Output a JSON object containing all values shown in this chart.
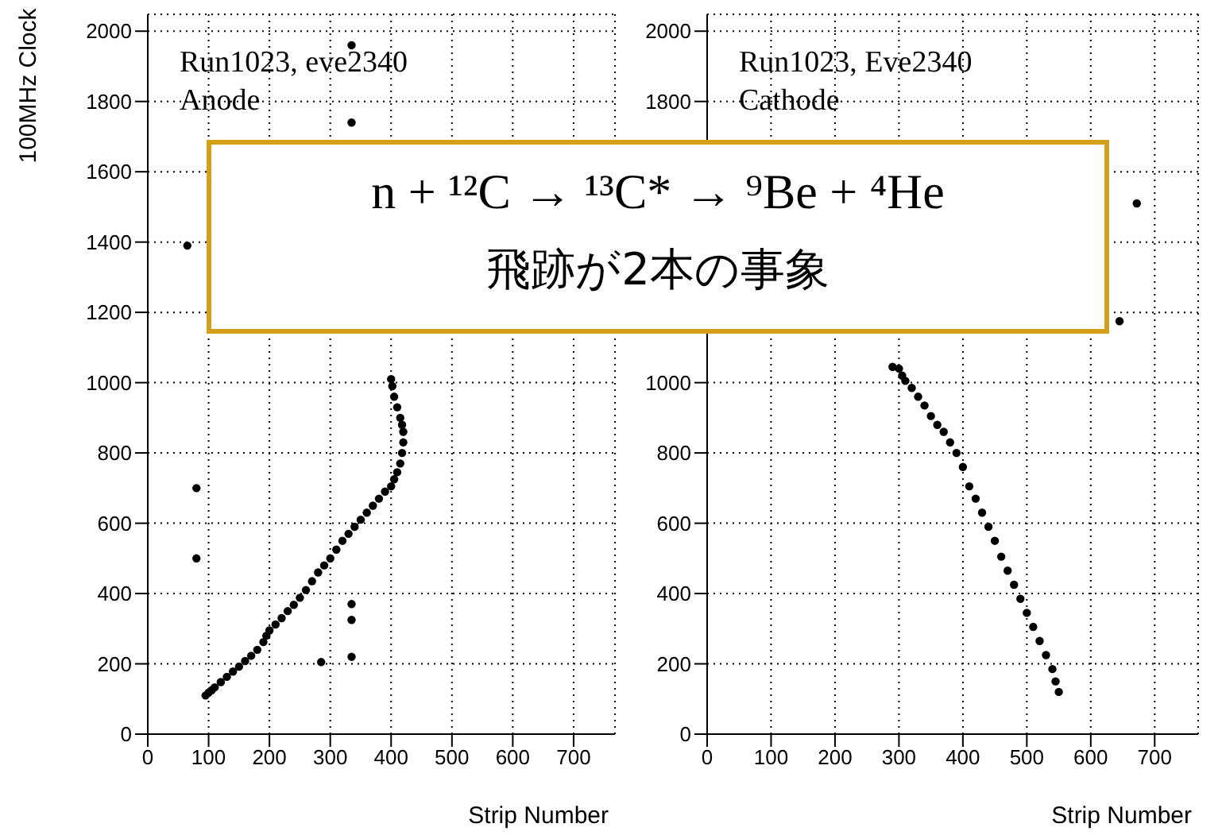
{
  "chart_data": [
    {
      "type": "scatter",
      "xlabel": "Strip Number",
      "ylabel": "100MHz Clock",
      "xlim": [
        0,
        768
      ],
      "ylim": [
        0,
        2048
      ],
      "xticks": [
        0,
        100,
        200,
        300,
        400,
        500,
        600,
        700
      ],
      "yticks": [
        0,
        200,
        400,
        600,
        800,
        1000,
        1200,
        1400,
        1600,
        1800,
        2000
      ],
      "grid": true,
      "marker": "circle",
      "legend": false,
      "annotations": [
        "Run1023, eve2340",
        "Anode",
        "n + ¹²C → ¹³C* → ⁹Be + ⁴He",
        "飛跡が2本の事象"
      ],
      "series": [
        {
          "color": "#000000",
          "x": [
            95,
            100,
            105,
            110,
            120,
            130,
            140,
            150,
            160,
            170,
            180,
            190,
            195,
            200,
            210,
            220,
            230,
            240,
            250,
            260,
            270,
            280,
            290,
            300,
            310,
            320,
            330,
            340,
            350,
            360,
            370,
            380,
            390,
            400,
            405,
            410,
            415,
            418,
            420,
            420,
            418,
            415,
            410,
            405,
            402,
            400,
            80,
            80,
            65,
            335,
            335,
            335,
            335,
            335,
            285
          ],
          "values": [
            110,
            118,
            125,
            133,
            148,
            163,
            178,
            192,
            208,
            223,
            240,
            262,
            280,
            295,
            312,
            330,
            350,
            368,
            388,
            410,
            435,
            460,
            480,
            500,
            525,
            550,
            570,
            590,
            610,
            630,
            650,
            670,
            690,
            705,
            725,
            745,
            770,
            800,
            830,
            860,
            880,
            900,
            930,
            960,
            990,
            1010,
            700,
            500,
            1390,
            1960,
            1740,
            370,
            325,
            220,
            205
          ]
        }
      ]
    },
    {
      "type": "scatter",
      "xlabel": "Strip Number",
      "xlim": [
        0,
        768
      ],
      "ylim": [
        0,
        2048
      ],
      "xticks": [
        0,
        100,
        200,
        300,
        400,
        500,
        600,
        700
      ],
      "grid": true,
      "marker": "circle",
      "legend": false,
      "annotations": [
        "Run1023, Eve2340",
        "Cathode"
      ],
      "yticks": [
        0,
        200,
        400,
        600,
        800,
        1000,
        {
          "value": 1200,
          "label": null
        },
        {
          "value": 1400,
          "label": null
        },
        {
          "value": 1600,
          "label": null
        },
        1800,
        2000
      ],
      "series": [
        {
          "color": "#000000",
          "x": [
            290,
            300,
            305,
            310,
            320,
            330,
            340,
            350,
            360,
            370,
            380,
            390,
            400,
            410,
            420,
            430,
            440,
            450,
            460,
            470,
            480,
            490,
            500,
            510,
            520,
            530,
            540,
            545,
            550,
            672,
            645
          ],
          "values": [
            1045,
            1040,
            1020,
            1005,
            985,
            960,
            935,
            905,
            880,
            860,
            830,
            800,
            760,
            705,
            670,
            630,
            590,
            550,
            505,
            465,
            425,
            385,
            345,
            305,
            265,
            225,
            185,
            150,
            120,
            1510,
            1175
          ]
        }
      ]
    }
  ]
}
